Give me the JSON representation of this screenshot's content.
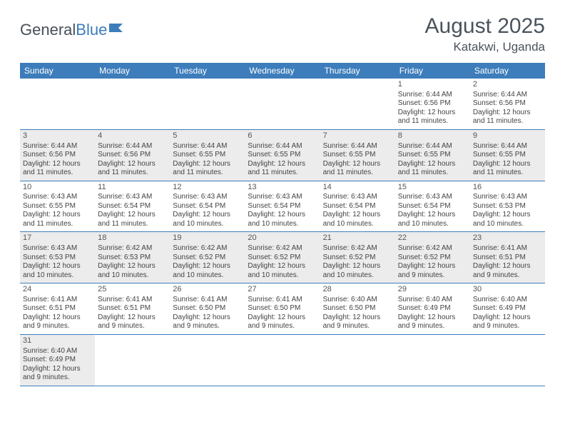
{
  "logo": {
    "general": "General",
    "blue": "Blue"
  },
  "title": "August 2025",
  "location": "Katakwi, Uganda",
  "colors": {
    "header_bg": "#3d7dbb",
    "header_text": "#ffffff",
    "shaded_bg": "#ececec",
    "border": "#3d7dbb",
    "title_color": "#4a535c"
  },
  "day_names": [
    "Sunday",
    "Monday",
    "Tuesday",
    "Wednesday",
    "Thursday",
    "Friday",
    "Saturday"
  ],
  "weeks": [
    [
      {
        "empty": true
      },
      {
        "empty": true
      },
      {
        "empty": true
      },
      {
        "empty": true
      },
      {
        "empty": true
      },
      {
        "num": "1",
        "sunrise": "Sunrise: 6:44 AM",
        "sunset": "Sunset: 6:56 PM",
        "daylight1": "Daylight: 12 hours",
        "daylight2": "and 11 minutes."
      },
      {
        "num": "2",
        "sunrise": "Sunrise: 6:44 AM",
        "sunset": "Sunset: 6:56 PM",
        "daylight1": "Daylight: 12 hours",
        "daylight2": "and 11 minutes."
      }
    ],
    [
      {
        "num": "3",
        "shaded": true,
        "sunrise": "Sunrise: 6:44 AM",
        "sunset": "Sunset: 6:56 PM",
        "daylight1": "Daylight: 12 hours",
        "daylight2": "and 11 minutes."
      },
      {
        "num": "4",
        "shaded": true,
        "sunrise": "Sunrise: 6:44 AM",
        "sunset": "Sunset: 6:56 PM",
        "daylight1": "Daylight: 12 hours",
        "daylight2": "and 11 minutes."
      },
      {
        "num": "5",
        "shaded": true,
        "sunrise": "Sunrise: 6:44 AM",
        "sunset": "Sunset: 6:55 PM",
        "daylight1": "Daylight: 12 hours",
        "daylight2": "and 11 minutes."
      },
      {
        "num": "6",
        "shaded": true,
        "sunrise": "Sunrise: 6:44 AM",
        "sunset": "Sunset: 6:55 PM",
        "daylight1": "Daylight: 12 hours",
        "daylight2": "and 11 minutes."
      },
      {
        "num": "7",
        "shaded": true,
        "sunrise": "Sunrise: 6:44 AM",
        "sunset": "Sunset: 6:55 PM",
        "daylight1": "Daylight: 12 hours",
        "daylight2": "and 11 minutes."
      },
      {
        "num": "8",
        "shaded": true,
        "sunrise": "Sunrise: 6:44 AM",
        "sunset": "Sunset: 6:55 PM",
        "daylight1": "Daylight: 12 hours",
        "daylight2": "and 11 minutes."
      },
      {
        "num": "9",
        "shaded": true,
        "sunrise": "Sunrise: 6:44 AM",
        "sunset": "Sunset: 6:55 PM",
        "daylight1": "Daylight: 12 hours",
        "daylight2": "and 11 minutes."
      }
    ],
    [
      {
        "num": "10",
        "sunrise": "Sunrise: 6:43 AM",
        "sunset": "Sunset: 6:55 PM",
        "daylight1": "Daylight: 12 hours",
        "daylight2": "and 11 minutes."
      },
      {
        "num": "11",
        "sunrise": "Sunrise: 6:43 AM",
        "sunset": "Sunset: 6:54 PM",
        "daylight1": "Daylight: 12 hours",
        "daylight2": "and 11 minutes."
      },
      {
        "num": "12",
        "sunrise": "Sunrise: 6:43 AM",
        "sunset": "Sunset: 6:54 PM",
        "daylight1": "Daylight: 12 hours",
        "daylight2": "and 10 minutes."
      },
      {
        "num": "13",
        "sunrise": "Sunrise: 6:43 AM",
        "sunset": "Sunset: 6:54 PM",
        "daylight1": "Daylight: 12 hours",
        "daylight2": "and 10 minutes."
      },
      {
        "num": "14",
        "sunrise": "Sunrise: 6:43 AM",
        "sunset": "Sunset: 6:54 PM",
        "daylight1": "Daylight: 12 hours",
        "daylight2": "and 10 minutes."
      },
      {
        "num": "15",
        "sunrise": "Sunrise: 6:43 AM",
        "sunset": "Sunset: 6:54 PM",
        "daylight1": "Daylight: 12 hours",
        "daylight2": "and 10 minutes."
      },
      {
        "num": "16",
        "sunrise": "Sunrise: 6:43 AM",
        "sunset": "Sunset: 6:53 PM",
        "daylight1": "Daylight: 12 hours",
        "daylight2": "and 10 minutes."
      }
    ],
    [
      {
        "num": "17",
        "shaded": true,
        "sunrise": "Sunrise: 6:43 AM",
        "sunset": "Sunset: 6:53 PM",
        "daylight1": "Daylight: 12 hours",
        "daylight2": "and 10 minutes."
      },
      {
        "num": "18",
        "shaded": true,
        "sunrise": "Sunrise: 6:42 AM",
        "sunset": "Sunset: 6:53 PM",
        "daylight1": "Daylight: 12 hours",
        "daylight2": "and 10 minutes."
      },
      {
        "num": "19",
        "shaded": true,
        "sunrise": "Sunrise: 6:42 AM",
        "sunset": "Sunset: 6:52 PM",
        "daylight1": "Daylight: 12 hours",
        "daylight2": "and 10 minutes."
      },
      {
        "num": "20",
        "shaded": true,
        "sunrise": "Sunrise: 6:42 AM",
        "sunset": "Sunset: 6:52 PM",
        "daylight1": "Daylight: 12 hours",
        "daylight2": "and 10 minutes."
      },
      {
        "num": "21",
        "shaded": true,
        "sunrise": "Sunrise: 6:42 AM",
        "sunset": "Sunset: 6:52 PM",
        "daylight1": "Daylight: 12 hours",
        "daylight2": "and 10 minutes."
      },
      {
        "num": "22",
        "shaded": true,
        "sunrise": "Sunrise: 6:42 AM",
        "sunset": "Sunset: 6:52 PM",
        "daylight1": "Daylight: 12 hours",
        "daylight2": "and 9 minutes."
      },
      {
        "num": "23",
        "shaded": true,
        "sunrise": "Sunrise: 6:41 AM",
        "sunset": "Sunset: 6:51 PM",
        "daylight1": "Daylight: 12 hours",
        "daylight2": "and 9 minutes."
      }
    ],
    [
      {
        "num": "24",
        "sunrise": "Sunrise: 6:41 AM",
        "sunset": "Sunset: 6:51 PM",
        "daylight1": "Daylight: 12 hours",
        "daylight2": "and 9 minutes."
      },
      {
        "num": "25",
        "sunrise": "Sunrise: 6:41 AM",
        "sunset": "Sunset: 6:51 PM",
        "daylight1": "Daylight: 12 hours",
        "daylight2": "and 9 minutes."
      },
      {
        "num": "26",
        "sunrise": "Sunrise: 6:41 AM",
        "sunset": "Sunset: 6:50 PM",
        "daylight1": "Daylight: 12 hours",
        "daylight2": "and 9 minutes."
      },
      {
        "num": "27",
        "sunrise": "Sunrise: 6:41 AM",
        "sunset": "Sunset: 6:50 PM",
        "daylight1": "Daylight: 12 hours",
        "daylight2": "and 9 minutes."
      },
      {
        "num": "28",
        "sunrise": "Sunrise: 6:40 AM",
        "sunset": "Sunset: 6:50 PM",
        "daylight1": "Daylight: 12 hours",
        "daylight2": "and 9 minutes."
      },
      {
        "num": "29",
        "sunrise": "Sunrise: 6:40 AM",
        "sunset": "Sunset: 6:49 PM",
        "daylight1": "Daylight: 12 hours",
        "daylight2": "and 9 minutes."
      },
      {
        "num": "30",
        "sunrise": "Sunrise: 6:40 AM",
        "sunset": "Sunset: 6:49 PM",
        "daylight1": "Daylight: 12 hours",
        "daylight2": "and 9 minutes."
      }
    ],
    [
      {
        "num": "31",
        "shaded": true,
        "sunrise": "Sunrise: 6:40 AM",
        "sunset": "Sunset: 6:49 PM",
        "daylight1": "Daylight: 12 hours",
        "daylight2": "and 9 minutes."
      },
      {
        "empty": true
      },
      {
        "empty": true
      },
      {
        "empty": true
      },
      {
        "empty": true
      },
      {
        "empty": true
      },
      {
        "empty": true
      }
    ]
  ]
}
